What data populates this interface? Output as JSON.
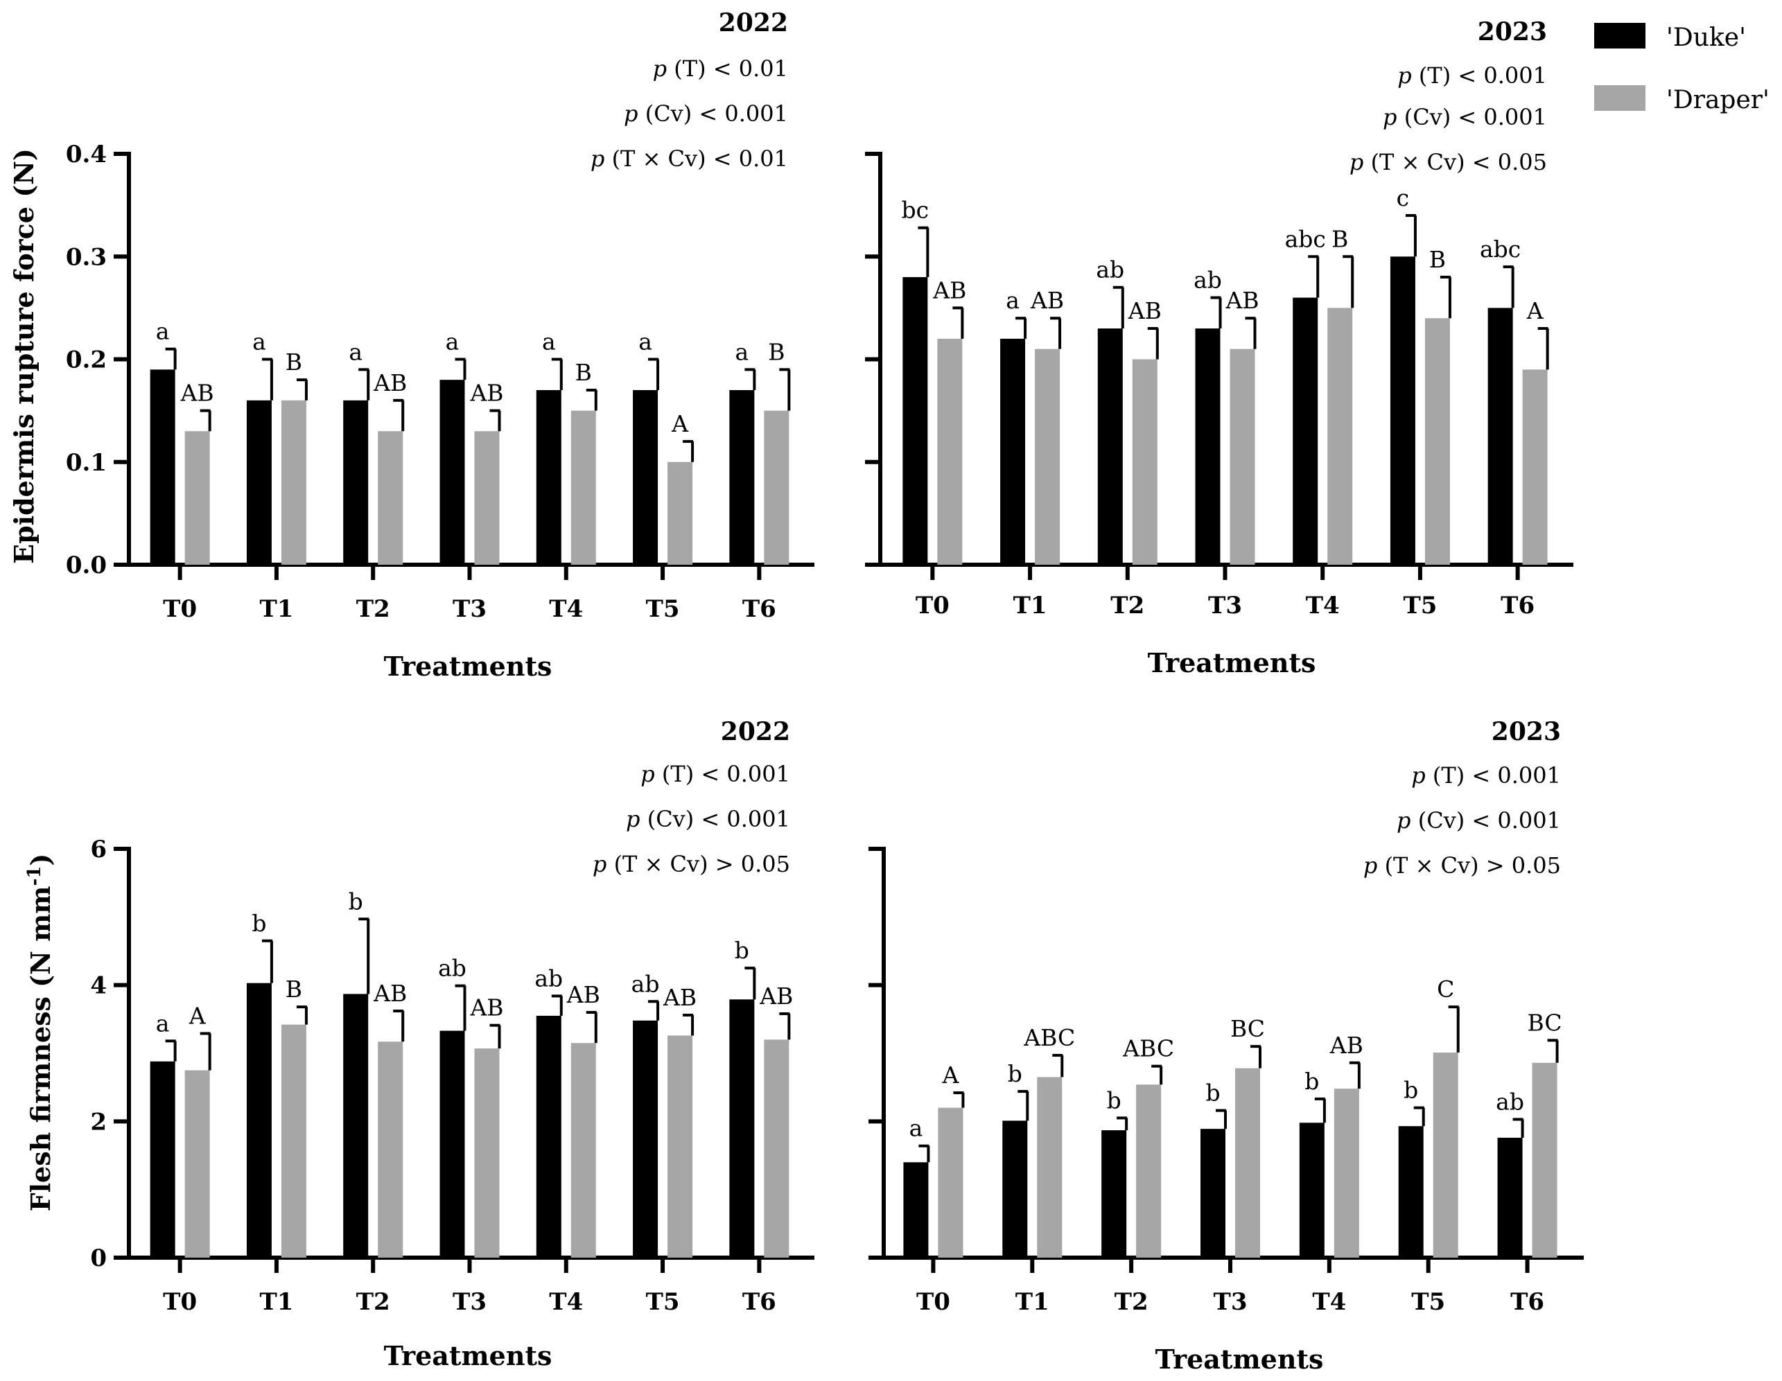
{
  "colors": {
    "duke": "#000000",
    "draper": "#a6a6a6"
  },
  "legend": [
    {
      "label": "'Duke'",
      "color": "#000000"
    },
    {
      "label": "'Draper'",
      "color": "#a6a6a6"
    }
  ],
  "y_titles": {
    "rupture": "Epidermis rupture force (N)",
    "firmness_main": "Flesh firmness (N mm",
    "firmness_sup": "-1",
    "firmness_close": ")"
  },
  "chart_data": [
    {
      "id": "panel-a",
      "type": "bar",
      "title": "2022",
      "stats": [
        {
          "p": "p",
          "rest": " (T) < 0.01"
        },
        {
          "p": "p",
          "rest": " (Cv) < 0.001"
        },
        {
          "p": "p",
          "rest": " (T × Cv) < 0.01"
        }
      ],
      "xlabel": "Treatments",
      "ylabel": "Epidermis rupture force (N)",
      "ylim": [
        0,
        0.4
      ],
      "yticks": [
        0.0,
        0.1,
        0.2,
        0.3,
        0.4
      ],
      "ytick_labels": [
        "0.0",
        "0.1",
        "0.2",
        "0.3",
        "0.4"
      ],
      "categories": [
        "T0",
        "T1",
        "T2",
        "T3",
        "T4",
        "T5",
        "T6"
      ],
      "series": [
        {
          "name": "'Duke'",
          "values": [
            0.19,
            0.16,
            0.16,
            0.18,
            0.17,
            0.17,
            0.17
          ],
          "errors": [
            0.02,
            0.04,
            0.03,
            0.02,
            0.03,
            0.03,
            0.02
          ],
          "letters": [
            "a",
            "a",
            "a",
            "a",
            "a",
            "a",
            "a"
          ]
        },
        {
          "name": "'Draper'",
          "values": [
            0.13,
            0.16,
            0.13,
            0.13,
            0.15,
            0.1,
            0.15
          ],
          "errors": [
            0.02,
            0.02,
            0.03,
            0.02,
            0.02,
            0.02,
            0.04
          ],
          "letters": [
            "AB",
            "B",
            "AB",
            "AB",
            "B",
            "A",
            "B"
          ]
        }
      ]
    },
    {
      "id": "panel-b",
      "type": "bar",
      "title": "2023",
      "stats": [
        {
          "p": "p",
          "rest": " (T) < 0.001"
        },
        {
          "p": "p",
          "rest": " (Cv) < 0.001"
        },
        {
          "p": "p",
          "rest": " (T × Cv) < 0.05"
        }
      ],
      "xlabel": "Treatments",
      "ylabel": "",
      "ylim": [
        0,
        0.4
      ],
      "yticks": [
        0.0,
        0.1,
        0.2,
        0.3,
        0.4
      ],
      "ytick_labels": [],
      "categories": [
        "T0",
        "T1",
        "T2",
        "T3",
        "T4",
        "T5",
        "T6"
      ],
      "series": [
        {
          "name": "'Duke'",
          "values": [
            0.28,
            0.22,
            0.23,
            0.23,
            0.26,
            0.3,
            0.25
          ],
          "errors": [
            0.048,
            0.02,
            0.04,
            0.03,
            0.04,
            0.04,
            0.04
          ],
          "letters": [
            "bc",
            "a",
            "ab",
            "ab",
            "abc",
            "c",
            "abc"
          ]
        },
        {
          "name": "'Draper'",
          "values": [
            0.22,
            0.21,
            0.2,
            0.21,
            0.25,
            0.24,
            0.19
          ],
          "errors": [
            0.03,
            0.03,
            0.03,
            0.03,
            0.05,
            0.04,
            0.04
          ],
          "letters": [
            "AB",
            "AB",
            "AB",
            "AB",
            "B",
            "B",
            "A"
          ]
        }
      ]
    },
    {
      "id": "panel-c",
      "type": "bar",
      "title": "2022",
      "stats": [
        {
          "p": "p",
          "rest": " (T) < 0.001"
        },
        {
          "p": "p",
          "rest": " (Cv) < 0.001"
        },
        {
          "p": "p",
          "rest": " (T × Cv) > 0.05"
        }
      ],
      "xlabel": "Treatments",
      "ylabel": "Flesh firmness (N mm-1)",
      "ylim": [
        0,
        6
      ],
      "yticks": [
        0,
        2,
        4,
        6
      ],
      "ytick_labels": [
        "0",
        "2",
        "4",
        "6"
      ],
      "categories": [
        "T0",
        "T1",
        "T2",
        "T3",
        "T4",
        "T5",
        "T6"
      ],
      "series": [
        {
          "name": "'Duke'",
          "values": [
            2.88,
            4.03,
            3.87,
            3.33,
            3.55,
            3.48,
            3.79
          ],
          "errors": [
            0.3,
            0.62,
            1.1,
            0.66,
            0.29,
            0.28,
            0.46
          ],
          "letters": [
            "a",
            "b",
            "b",
            "ab",
            "ab",
            "ab",
            "b"
          ]
        },
        {
          "name": "'Draper'",
          "values": [
            2.75,
            3.42,
            3.17,
            3.07,
            3.15,
            3.26,
            3.2
          ],
          "errors": [
            0.54,
            0.26,
            0.45,
            0.34,
            0.45,
            0.3,
            0.38
          ],
          "letters": [
            "A",
            "B",
            "AB",
            "AB",
            "AB",
            "AB",
            "AB"
          ]
        }
      ]
    },
    {
      "id": "panel-d",
      "type": "bar",
      "title": "2023",
      "stats": [
        {
          "p": "p",
          "rest": " (T) < 0.001"
        },
        {
          "p": "p",
          "rest": " (Cv) < 0.001"
        },
        {
          "p": "p",
          "rest": " (T × Cv) > 0.05"
        }
      ],
      "xlabel": "Treatments",
      "ylabel": "",
      "ylim": [
        0,
        6
      ],
      "yticks": [
        0,
        2,
        4,
        6
      ],
      "ytick_labels": [],
      "categories": [
        "T0",
        "T1",
        "T2",
        "T3",
        "T4",
        "T5",
        "T6"
      ],
      "series": [
        {
          "name": "'Duke'",
          "values": [
            1.4,
            2.01,
            1.87,
            1.89,
            1.98,
            1.93,
            1.76
          ],
          "errors": [
            0.24,
            0.43,
            0.18,
            0.27,
            0.35,
            0.27,
            0.27
          ],
          "letters": [
            "a",
            "b",
            "b",
            "b",
            "b",
            "b",
            "ab"
          ]
        },
        {
          "name": "'Draper'",
          "values": [
            2.2,
            2.65,
            2.54,
            2.78,
            2.48,
            3.01,
            2.86
          ],
          "errors": [
            0.22,
            0.32,
            0.27,
            0.32,
            0.38,
            0.67,
            0.33
          ],
          "letters": [
            "A",
            "ABC",
            "ABC",
            "BC",
            "AB",
            "C",
            "BC"
          ]
        }
      ]
    }
  ]
}
